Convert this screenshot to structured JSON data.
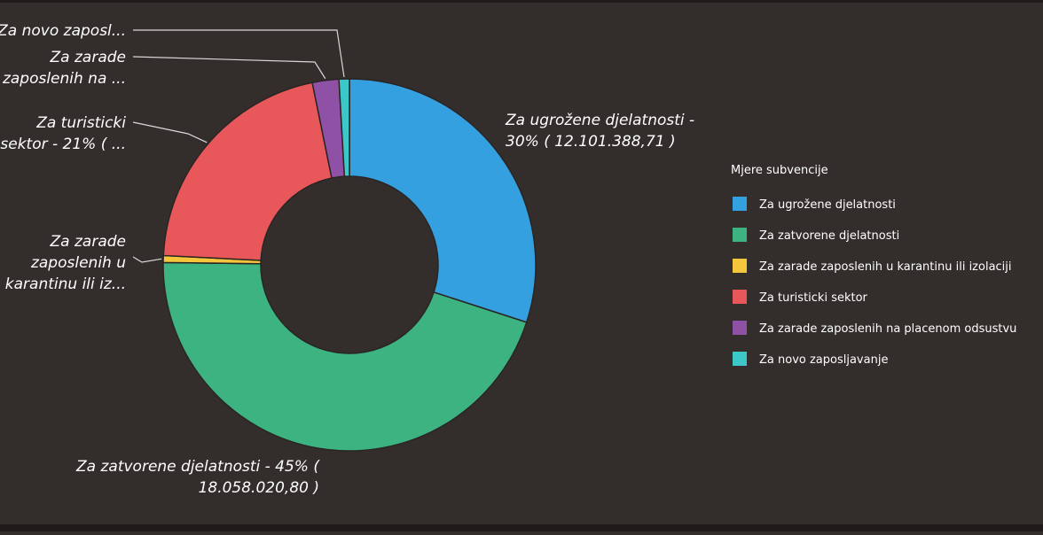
{
  "chart_data": {
    "type": "pie",
    "variant": "donut",
    "legend_title": "Mjere subvencije",
    "legend_position": "right",
    "slices": [
      {
        "label": "Za ugrožene djelatnosti",
        "percent": 30.0,
        "color": "#35a0e0",
        "callout": [
          "Za ugrožene djelatnosti -",
          "30% ( 12.101.388,71 )"
        ]
      },
      {
        "label": "Za zatvorene djelatnosti",
        "percent": 45.2,
        "color": "#3cb381",
        "callout": [
          "Za zatvorene djelatnosti - 45% (",
          "18.058.020,80 )"
        ]
      },
      {
        "label": "Za zarade zaposlenih u karantinu ili izolaciji",
        "percent": 0.6,
        "color": "#f5c53c",
        "callout": [
          "Za zarade",
          "zaposlenih u",
          "karantinu ili iz..."
        ]
      },
      {
        "label": "Za turisticki sektor",
        "percent": 21.0,
        "color": "#e8585a",
        "callout": [
          "Za turisticki",
          "sektor - 21% ( ..."
        ]
      },
      {
        "label": "Za zarade zaposlenih na placenom odsustvu",
        "percent": 2.3,
        "color": "#8e51a6",
        "callout": [
          "Za zarade",
          "zaposlenih na ..."
        ]
      },
      {
        "label": "Za novo zaposljavanje",
        "percent": 0.9,
        "color": "#3cc8c8",
        "callout": [
          "Za novo zaposl..."
        ]
      }
    ]
  }
}
